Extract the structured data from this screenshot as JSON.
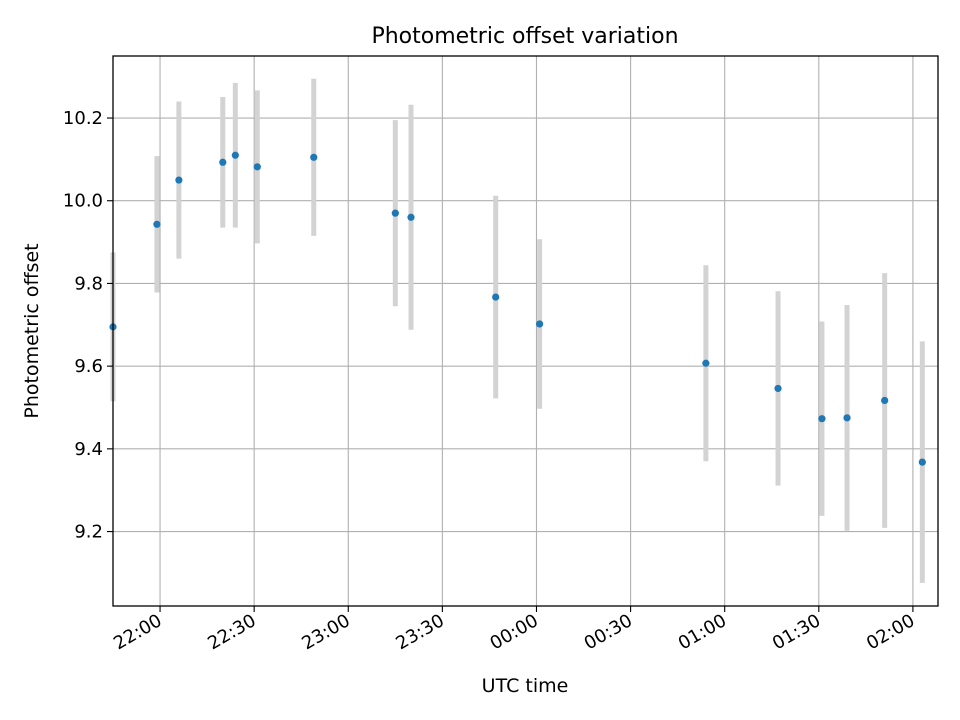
{
  "chart_data": {
    "type": "scatter",
    "title": "Photometric offset variation",
    "xlabel": "UTC time",
    "ylabel": "Photometric offset",
    "x_ticks": [
      "22:00",
      "22:30",
      "23:00",
      "23:30",
      "00:00",
      "00:30",
      "01:00",
      "01:30",
      "02:00"
    ],
    "y_ticks": [
      "9.2",
      "9.4",
      "9.6",
      "9.8",
      "10.0",
      "10.2"
    ],
    "xlim": [
      "21:45",
      "02:08"
    ],
    "ylim": [
      9.02,
      10.35
    ],
    "grid": true,
    "colors": {
      "point": "#1f77b4",
      "errorbar": "#d3d3d3",
      "grid": "#b0b0b0"
    },
    "points": [
      {
        "x": "21:45",
        "y": 9.695,
        "yerr": 0.18
      },
      {
        "x": "21:59",
        "y": 9.943,
        "yerr": 0.165
      },
      {
        "x": "22:06",
        "y": 10.05,
        "yerr": 0.19
      },
      {
        "x": "22:20",
        "y": 10.093,
        "yerr": 0.158
      },
      {
        "x": "22:24",
        "y": 10.11,
        "yerr": 0.175
      },
      {
        "x": "22:31",
        "y": 10.082,
        "yerr": 0.185
      },
      {
        "x": "22:49",
        "y": 10.105,
        "yerr": 0.19
      },
      {
        "x": "23:15",
        "y": 9.97,
        "yerr": 0.225
      },
      {
        "x": "23:20",
        "y": 9.96,
        "yerr": 0.272
      },
      {
        "x": "23:47",
        "y": 9.767,
        "yerr": 0.245
      },
      {
        "x": "00:01",
        "y": 9.702,
        "yerr": 0.205
      },
      {
        "x": "00:54",
        "y": 9.607,
        "yerr": 0.237
      },
      {
        "x": "01:17",
        "y": 9.546,
        "yerr": 0.235
      },
      {
        "x": "01:31",
        "y": 9.473,
        "yerr": 0.235
      },
      {
        "x": "01:39",
        "y": 9.475,
        "yerr": 0.273
      },
      {
        "x": "01:51",
        "y": 9.517,
        "yerr": 0.308
      },
      {
        "x": "02:03",
        "y": 9.368,
        "yerr": 0.292
      }
    ]
  }
}
